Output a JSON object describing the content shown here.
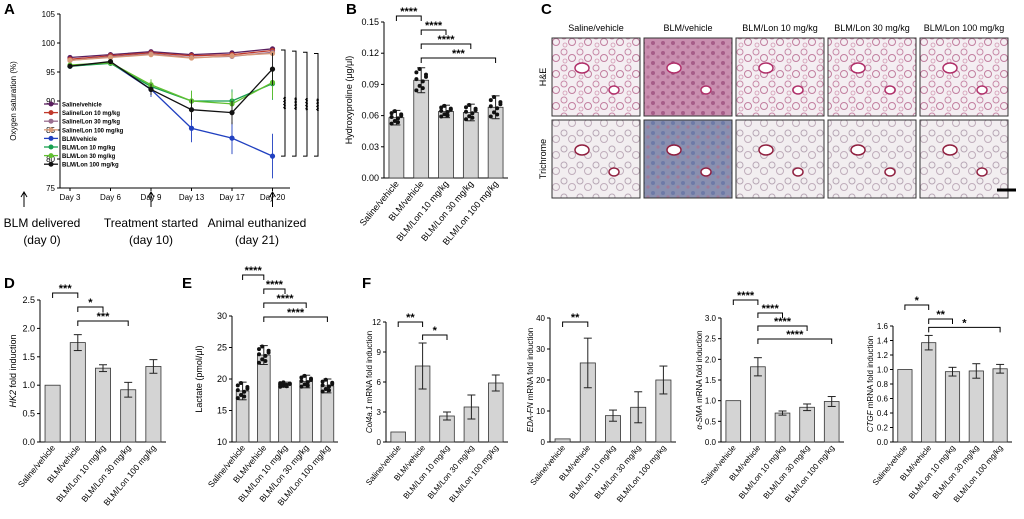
{
  "panels": {
    "A": "A",
    "B": "B",
    "C": "C",
    "D": "D",
    "E": "E",
    "F": "F"
  },
  "colors": {
    "saline": "#5a1f5f",
    "sal10": "#c0392b",
    "sal30": "#9a6e8f",
    "sal100": "#d89a78",
    "blm": "#2040c0",
    "l10": "#18a050",
    "l30": "#60c030",
    "l100": "#111111",
    "bar": "#d4d4d4"
  },
  "chart_data": [
    {
      "id": "A",
      "type": "line",
      "x": [
        "Day 3",
        "Day 6",
        "Day 9",
        "Day 13",
        "Day 17",
        "Day 20"
      ],
      "ylabel": "Oxygen saturation (%)",
      "yticks": [
        "75",
        "80",
        "85",
        "90",
        "95",
        "100",
        "105"
      ],
      "ylim": [
        75,
        105
      ],
      "legend_placement": "left",
      "series": [
        {
          "name": "Saline/vehicle",
          "color": "#5a1f5f",
          "values": [
            97.5,
            98,
            98.5,
            98,
            98.3,
            99
          ]
        },
        {
          "name": "Saline/Lon 10 mg/kg",
          "color": "#c0392b",
          "values": [
            97.2,
            97.8,
            98.3,
            97.8,
            98,
            98.7
          ]
        },
        {
          "name": "Saline/Lon 30 mg/kg",
          "color": "#9a6e8f",
          "values": [
            97,
            97.6,
            98.1,
            97.5,
            97.7,
            98.4
          ]
        },
        {
          "name": "Saline/Lon 100 mg/kg",
          "color": "#d89a78",
          "values": [
            97,
            97.5,
            98,
            97.4,
            97.8,
            98.2
          ]
        },
        {
          "name": "BLM/vehicle",
          "color": "#2040c0",
          "values": [
            96,
            96.6,
            92,
            85.3,
            83.6,
            80.5
          ]
        },
        {
          "name": "BLM/Lon 10 mg/kg",
          "color": "#18a050",
          "values": [
            96,
            96.5,
            92.5,
            90,
            90,
            93
          ]
        },
        {
          "name": "BLM/Lon 30 mg/kg",
          "color": "#60c030",
          "values": [
            96.2,
            96.6,
            92.8,
            90,
            89.5,
            93.2
          ]
        },
        {
          "name": "BLM/Lon 100 mg/kg",
          "color": "#111111",
          "values": [
            96,
            96.8,
            92,
            88.5,
            88,
            95.5
          ]
        }
      ],
      "significance": [
        "****",
        "****",
        "****",
        "****"
      ],
      "annotations": [
        {
          "label": "BLM delivered",
          "sub": "(day 0)"
        },
        {
          "label": "Treatment started",
          "sub": "(day 10)"
        },
        {
          "label": "Animal euthanized",
          "sub": "(day 21)"
        }
      ]
    },
    {
      "id": "B",
      "type": "bar",
      "categories": [
        "Saline/vehicle",
        "BLM/vehicle",
        "BLM/Lon 10 mg/kg",
        "BLM/Lon 30 mg/kg",
        "BLM/Lon 100 mg/kg"
      ],
      "values": [
        0.058,
        0.094,
        0.064,
        0.063,
        0.068
      ],
      "errors": [
        0.007,
        0.012,
        0.006,
        0.008,
        0.011
      ],
      "ylabel": "Hydroxyproline (μg/μl)",
      "yticks": [
        "0.00",
        "0.03",
        "0.06",
        "0.09",
        "0.12",
        "0.15"
      ],
      "ylim": [
        0,
        0.15
      ],
      "sig": [
        {
          "a": 0,
          "b": 1,
          "label": "****"
        },
        {
          "a": 1,
          "b": 2,
          "label": "****"
        },
        {
          "a": 1,
          "b": 3,
          "label": "****"
        },
        {
          "a": 1,
          "b": 4,
          "label": "***"
        }
      ]
    },
    {
      "id": "D",
      "type": "bar",
      "categories": [
        "Saline/vehicle",
        "BLM/vehicle",
        "BLM/Lon 10 mg/kg",
        "BLM/Lon 30 mg/kg",
        "BLM/Lon 100 mg/kg"
      ],
      "values": [
        1.0,
        1.75,
        1.3,
        0.92,
        1.33
      ],
      "errors": [
        0,
        0.14,
        0.06,
        0.13,
        0.12
      ],
      "ylabel_italic": "HK2",
      "ylabel_rest": " fold induction",
      "yticks": [
        "0.0",
        "0.5",
        "1.0",
        "1.5",
        "2.0",
        "2.5"
      ],
      "ylim": [
        0,
        2.5
      ],
      "sig": [
        {
          "a": 0,
          "b": 1,
          "label": "***"
        },
        {
          "a": 1,
          "b": 2,
          "label": "*"
        },
        {
          "a": 1,
          "b": 3,
          "label": "***"
        }
      ]
    },
    {
      "id": "E",
      "type": "bar",
      "categories": [
        "Saline/vehicle",
        "BLM/vehicle",
        "BLM/Lon 10 mg/kg",
        "BLM/Lon 30 mg/kg",
        "BLM/Lon 100 mg/kg"
      ],
      "values": [
        18.1,
        23.8,
        19.1,
        19.6,
        18.9
      ],
      "errors": [
        1.4,
        1.5,
        0.4,
        1.0,
        1.1
      ],
      "ylabel": "Lactate (pmol/μl)",
      "yticks": [
        "10",
        "15",
        "20",
        "25",
        "30"
      ],
      "ylim": [
        10,
        30
      ],
      "sig": [
        {
          "a": 0,
          "b": 1,
          "label": "****"
        },
        {
          "a": 1,
          "b": 2,
          "label": "****"
        },
        {
          "a": 1,
          "b": 3,
          "label": "****"
        },
        {
          "a": 1,
          "b": 4,
          "label": "****"
        }
      ]
    },
    {
      "id": "F1",
      "type": "bar",
      "categories": [
        "Saline/vehicle",
        "BLM/vehicle",
        "BLM/Lon 10 mg/kg",
        "BLM/Lon 30 mg/kg",
        "BLM/Lon 100 mg/kg"
      ],
      "values": [
        1.0,
        7.6,
        2.6,
        3.5,
        5.9
      ],
      "errors": [
        0,
        2.3,
        0.4,
        1.2,
        0.8
      ],
      "ylabel_italic": "Col4a.1",
      "ylabel_rest": " mRNA fold induction",
      "yticks": [
        "0",
        "3",
        "6",
        "9",
        "12"
      ],
      "ylim": [
        0,
        12
      ],
      "sig": [
        {
          "a": 0,
          "b": 1,
          "label": "**"
        },
        {
          "a": 1,
          "b": 2,
          "label": "*"
        }
      ]
    },
    {
      "id": "F2",
      "type": "bar",
      "categories": [
        "Saline/vehicle",
        "BLM/vehicle",
        "BLM/Lon 10 mg/kg",
        "BLM/Lon 30 mg/kg",
        "BLM/Lon 100 mg/kg"
      ],
      "values": [
        1.0,
        25.5,
        8.5,
        11.2,
        20.0
      ],
      "errors": [
        0,
        8.0,
        1.8,
        5.0,
        4.5
      ],
      "ylabel_italic": "EDA-FN",
      "ylabel_rest": " mRNA fold induction",
      "yticks": [
        "0",
        "10",
        "20",
        "30",
        "40"
      ],
      "ylim": [
        0,
        40
      ],
      "sig": [
        {
          "a": 0,
          "b": 1,
          "label": "**"
        }
      ]
    },
    {
      "id": "F3",
      "type": "bar",
      "categories": [
        "Saline/vehicle",
        "BLM/vehicle",
        "BLM/Lon 10 mg/kg",
        "BLM/Lon 30 mg/kg",
        "BLM/Lon 100 mg/kg"
      ],
      "values": [
        1.0,
        1.82,
        0.7,
        0.84,
        0.98
      ],
      "errors": [
        0,
        0.22,
        0.05,
        0.08,
        0.12
      ],
      "ylabel_italic": "α-SMA",
      "ylabel_rest": " mRNA fold induction",
      "yticks": [
        "0.0",
        "0.5",
        "1.0",
        "1.5",
        "2.0",
        "2.5",
        "3.0"
      ],
      "ylim": [
        0,
        3
      ],
      "sig": [
        {
          "a": 0,
          "b": 1,
          "label": "****"
        },
        {
          "a": 1,
          "b": 2,
          "label": "****"
        },
        {
          "a": 1,
          "b": 3,
          "label": "****"
        },
        {
          "a": 1,
          "b": 4,
          "label": "****"
        }
      ]
    },
    {
      "id": "F4",
      "type": "bar",
      "categories": [
        "Saline/vehicle",
        "BLM/vehicle",
        "BLM/Lon 10 mg/kg",
        "BLM/Lon 30 mg/kg",
        "BLM/Lon 100 mg/kg"
      ],
      "values": [
        1.0,
        1.37,
        0.97,
        0.98,
        1.01
      ],
      "errors": [
        0,
        0.1,
        0.06,
        0.1,
        0.06
      ],
      "ylabel_italic": "CTGF",
      "ylabel_rest": " mRNA fold induction",
      "yticks": [
        "0.0",
        "0.2",
        "0.4",
        "0.6",
        "0.8",
        "1.0",
        "1.2",
        "1.4",
        "1.6"
      ],
      "ylim": [
        0,
        1.6
      ],
      "sig": [
        {
          "a": 0,
          "b": 1,
          "label": "*"
        },
        {
          "a": 1,
          "b": 2,
          "label": "**"
        },
        {
          "a": 1,
          "b": 4,
          "label": "*"
        }
      ]
    }
  ],
  "micrographs": {
    "columns": [
      "Saline/vehicle",
      "BLM/vehicle",
      "BLM/Lon 10 mg/kg",
      "BLM/Lon 30 mg/kg",
      "BLM/Lon 100 mg/kg"
    ],
    "rows": [
      "H&E",
      "Trichrome"
    ]
  }
}
